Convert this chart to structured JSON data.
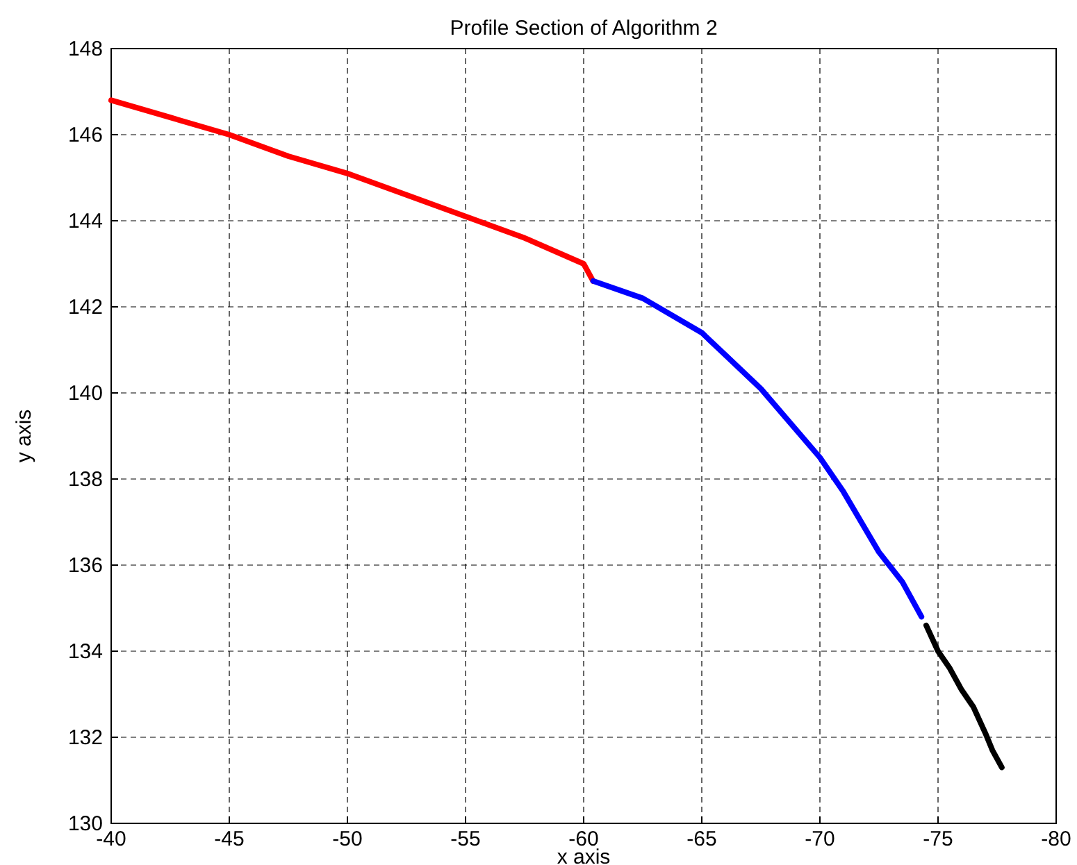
{
  "chart_data": {
    "type": "line",
    "title": "Profile Section of Algorithm 2",
    "xlabel": "x axis",
    "ylabel": "y axis",
    "xlim": [
      -40,
      -80
    ],
    "xticks": [
      -40,
      -45,
      -50,
      -55,
      -60,
      -65,
      -70,
      -75,
      -80
    ],
    "ylim": [
      130,
      148
    ],
    "yticks": [
      130,
      132,
      134,
      136,
      138,
      140,
      142,
      144,
      146,
      148
    ],
    "grid": true,
    "line_style": "solid",
    "marker": "none",
    "series": [
      {
        "color": "#ff0000",
        "x": [
          -40,
          -42.5,
          -45,
          -47.5,
          -50,
          -52.5,
          -55,
          -57.5,
          -60,
          -60.4
        ],
        "values": [
          146.8,
          146.4,
          146.0,
          145.5,
          145.1,
          144.6,
          144.1,
          143.6,
          143.0,
          142.6
        ]
      },
      {
        "color": "#0000ff",
        "x": [
          -60.4,
          -62.5,
          -65,
          -67.5,
          -70,
          -71,
          -72.5,
          -73.5,
          -74.3
        ],
        "values": [
          142.6,
          142.2,
          141.4,
          140.1,
          138.5,
          137.7,
          136.3,
          135.6,
          134.8
        ]
      },
      {
        "color": "#000000",
        "x": [
          -74.5,
          -75,
          -75.5,
          -76,
          -76.5,
          -77,
          -77.3,
          -77.7
        ],
        "values": [
          134.6,
          134.0,
          133.6,
          133.1,
          132.7,
          132.1,
          131.7,
          131.3
        ]
      }
    ]
  }
}
